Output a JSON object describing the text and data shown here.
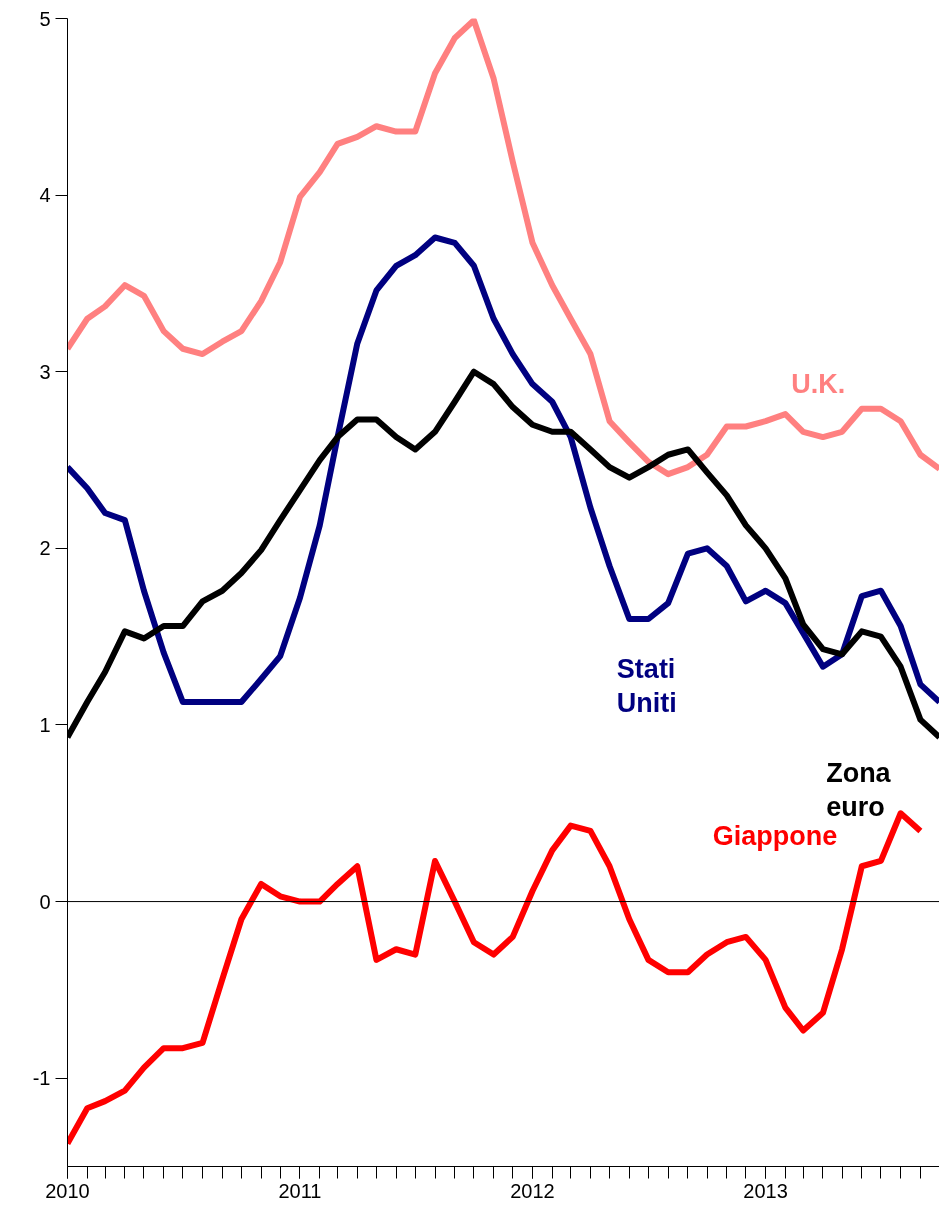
{
  "chart_data": {
    "type": "line",
    "x": [
      "2010-01",
      "2010-02",
      "2010-03",
      "2010-04",
      "2010-05",
      "2010-06",
      "2010-07",
      "2010-08",
      "2010-09",
      "2010-10",
      "2010-11",
      "2010-12",
      "2011-01",
      "2011-02",
      "2011-03",
      "2011-04",
      "2011-05",
      "2011-06",
      "2011-07",
      "2011-08",
      "2011-09",
      "2011-10",
      "2011-11",
      "2011-12",
      "2012-01",
      "2012-02",
      "2012-03",
      "2012-04",
      "2012-05",
      "2012-06",
      "2012-07",
      "2012-08",
      "2012-09",
      "2012-10",
      "2012-11",
      "2012-12",
      "2013-01",
      "2013-02",
      "2013-03",
      "2013-04",
      "2013-05",
      "2013-06",
      "2013-07",
      "2013-08",
      "2013-09",
      "2013-10"
    ],
    "series": [
      {
        "name": "U.K.",
        "color": "#ff8080",
        "values": [
          3.13,
          3.3,
          3.37,
          3.49,
          3.43,
          3.23,
          3.13,
          3.1,
          3.17,
          3.23,
          3.4,
          3.62,
          3.99,
          4.13,
          4.29,
          4.33,
          4.39,
          4.36,
          4.36,
          4.69,
          4.89,
          4.99,
          4.66,
          4.19,
          3.73,
          3.49,
          3.3,
          3.1,
          2.72,
          2.6,
          2.49,
          2.42,
          2.46,
          2.53,
          2.69,
          2.69,
          2.72,
          2.76,
          2.66,
          2.63,
          2.66,
          2.79,
          2.79,
          2.72,
          2.53,
          2.45
        ]
      },
      {
        "name": "Stati\nUniti",
        "color": "#000080",
        "values": [
          2.46,
          2.34,
          2.2,
          2.16,
          1.76,
          1.41,
          1.13,
          1.13,
          1.13,
          1.13,
          1.26,
          1.39,
          1.72,
          2.13,
          2.63,
          3.16,
          3.46,
          3.6,
          3.66,
          3.76,
          3.73,
          3.6,
          3.3,
          3.1,
          2.93,
          2.83,
          2.63,
          2.23,
          1.9,
          1.6,
          1.6,
          1.69,
          1.97,
          2.0,
          1.9,
          1.7,
          1.76,
          1.69,
          1.52,
          1.33,
          1.4,
          1.73,
          1.76,
          1.56,
          1.23,
          1.13
        ]
      },
      {
        "name": "Zona\neuro",
        "color": "#000000",
        "values": [
          0.93,
          1.13,
          1.3,
          1.53,
          1.49,
          1.56,
          1.56,
          1.7,
          1.76,
          1.86,
          1.99,
          2.16,
          2.33,
          2.5,
          2.63,
          2.73,
          2.73,
          2.63,
          2.56,
          2.66,
          2.83,
          3.0,
          2.93,
          2.8,
          2.7,
          2.66,
          2.66,
          2.56,
          2.46,
          2.4,
          2.46,
          2.53,
          2.56,
          2.43,
          2.3,
          2.13,
          2.0,
          1.83,
          1.57,
          1.43,
          1.4,
          1.53,
          1.5,
          1.33,
          1.03,
          0.93
        ]
      },
      {
        "name": "Giappone",
        "color": "#ff0000",
        "values": [
          -1.37,
          -1.17,
          -1.13,
          -1.07,
          -0.94,
          -0.83,
          -0.83,
          -0.8,
          -0.44,
          -0.1,
          0.1,
          0.03,
          0.0,
          0.0,
          0.1,
          0.2,
          -0.33,
          -0.27,
          -0.3,
          0.23,
          0.0,
          -0.23,
          -0.3,
          -0.2,
          0.06,
          0.29,
          0.43,
          0.4,
          0.2,
          -0.1,
          -0.33,
          -0.4,
          -0.4,
          -0.3,
          -0.23,
          -0.2,
          -0.33,
          -0.6,
          -0.73,
          -0.63,
          -0.27,
          0.2,
          0.23,
          0.5,
          0.4,
          null
        ]
      }
    ],
    "xlim": [
      "2010-01",
      "2013-10"
    ],
    "xticks": [
      "2010",
      "2011",
      "2012",
      "2013"
    ],
    "ylim": [
      -1.5,
      5
    ],
    "yticks": [
      -1,
      0,
      1,
      2,
      3,
      4,
      5
    ],
    "ref_lines": [
      {
        "axis": "y",
        "value": 0,
        "label": null,
        "color": "#000000"
      }
    ],
    "grid": false,
    "marker": "none",
    "line_style": "solid"
  }
}
